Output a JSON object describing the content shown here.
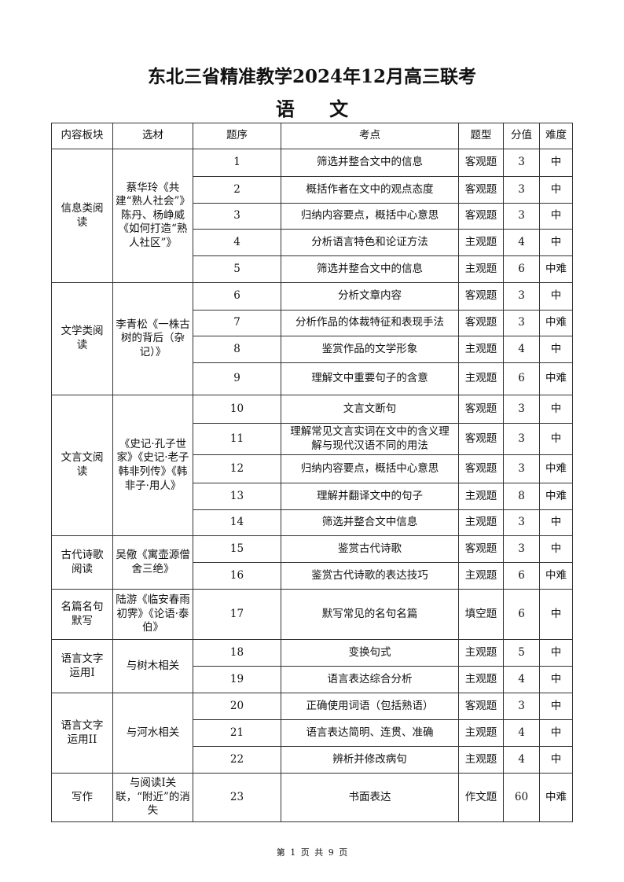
{
  "header": {
    "title": "东北三省精准教学2024年12月高三联考",
    "subject": "语 文"
  },
  "table": {
    "columns": [
      "内容板块",
      "选材",
      "题序",
      "考点",
      "题型",
      "分值",
      "难度"
    ],
    "groups": [
      {
        "section": "信息类阅读",
        "material": "蔡华玲《共建“熟人社会”》陈丹、杨峥威《如何打造“熟人社区”》",
        "rows": [
          {
            "no": "1",
            "point": "筛选并整合文中的信息",
            "type": "客观题",
            "score": "3",
            "difficulty": "中"
          },
          {
            "no": "2",
            "point": "概括作者在文中的观点态度",
            "type": "客观题",
            "score": "3",
            "difficulty": "中"
          },
          {
            "no": "3",
            "point": "归纳内容要点，概括中心意思",
            "type": "客观题",
            "score": "3",
            "difficulty": "中"
          },
          {
            "no": "4",
            "point": "分析语言特色和论证方法",
            "type": "主观题",
            "score": "4",
            "difficulty": "中"
          },
          {
            "no": "5",
            "point": "筛选并整合文中的信息",
            "type": "主观题",
            "score": "6",
            "difficulty": "中难"
          }
        ]
      },
      {
        "section": "文学类阅读",
        "material": "李青松《一株古树的背后（杂记）》",
        "rows": [
          {
            "no": "6",
            "point": "分析文章内容",
            "type": "客观题",
            "score": "3",
            "difficulty": "中"
          },
          {
            "no": "7",
            "point": "分析作品的体裁特征和表现手法",
            "type": "客观题",
            "score": "3",
            "difficulty": "中难"
          },
          {
            "no": "8",
            "point": "鉴赏作品的文学形象",
            "type": "主观题",
            "score": "4",
            "difficulty": "中"
          },
          {
            "no": "9",
            "point": "理解文中重要句子的含意",
            "type": "主观题",
            "score": "6",
            "difficulty": "中难"
          }
        ]
      },
      {
        "section": "文言文阅读",
        "material": "《史记·孔子世家》《史记·老子韩非列传》《韩非子·用人》",
        "rows": [
          {
            "no": "10",
            "point": "文言文断句",
            "type": "客观题",
            "score": "3",
            "difficulty": "中"
          },
          {
            "no": "11",
            "point": "理解常见文言实词在文中的含义理解与现代汉语不同的用法",
            "type": "客观题",
            "score": "3",
            "difficulty": "中"
          },
          {
            "no": "12",
            "point": "归纳内容要点，概括中心意思",
            "type": "客观题",
            "score": "3",
            "difficulty": "中难"
          },
          {
            "no": "13",
            "point": "理解并翻译文中的句子",
            "type": "主观题",
            "score": "8",
            "difficulty": "中难"
          },
          {
            "no": "14",
            "point": "筛选并整合文中信息",
            "type": "主观题",
            "score": "3",
            "difficulty": "中"
          }
        ]
      },
      {
        "section": "古代诗歌阅读",
        "material": "吴儆《寓壶源僧舍三绝》",
        "rows": [
          {
            "no": "15",
            "point": "鉴赏古代诗歌",
            "type": "客观题",
            "score": "3",
            "difficulty": "中"
          },
          {
            "no": "16",
            "point": "鉴赏古代诗歌的表达技巧",
            "type": "主观题",
            "score": "6",
            "difficulty": "中难"
          }
        ]
      },
      {
        "section": "名篇名句默写",
        "material": "陆游《临安春雨初霁》《论语·泰伯》",
        "rows": [
          {
            "no": "17",
            "point": "默写常见的名句名篇",
            "type": "填空题",
            "score": "6",
            "difficulty": "中"
          }
        ]
      },
      {
        "section": "语言文字运用I",
        "material": "与树木相关",
        "rows": [
          {
            "no": "18",
            "point": "变换句式",
            "type": "主观题",
            "score": "5",
            "difficulty": "中"
          },
          {
            "no": "19",
            "point": "语言表达综合分析",
            "type": "主观题",
            "score": "4",
            "difficulty": "中"
          }
        ]
      },
      {
        "section": "语言文字运用II",
        "material": "与河水相关",
        "rows": [
          {
            "no": "20",
            "point": "正确使用词语（包括熟语）",
            "type": "客观题",
            "score": "3",
            "difficulty": "中"
          },
          {
            "no": "21",
            "point": "语言表达简明、连贯、准确",
            "type": "主观题",
            "score": "4",
            "difficulty": "中"
          },
          {
            "no": "22",
            "point": "辨析并修改病句",
            "type": "主观题",
            "score": "4",
            "difficulty": "中"
          }
        ]
      },
      {
        "section": "写作",
        "material": "与阅读Ⅰ关联，“附近”的消失",
        "rows": [
          {
            "no": "23",
            "point": "书面表达",
            "type": "作文题",
            "score": "60",
            "difficulty": "中难"
          }
        ]
      }
    ]
  },
  "footer": {
    "page": "第 1 页 共 9 页"
  }
}
